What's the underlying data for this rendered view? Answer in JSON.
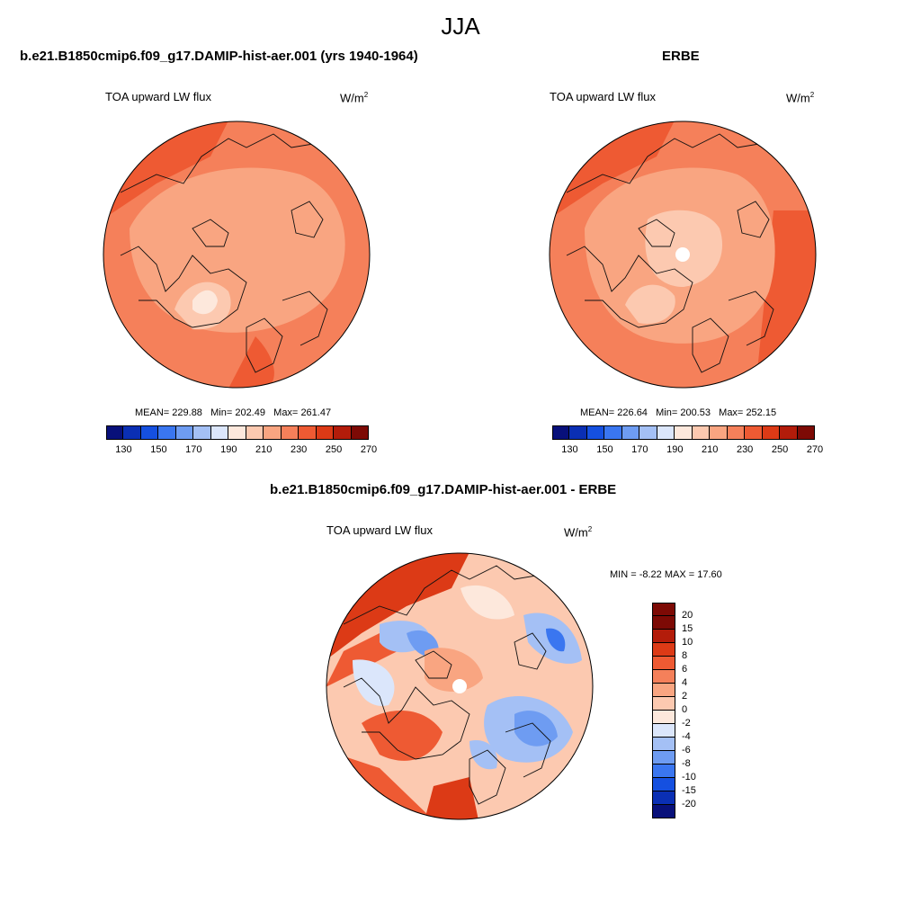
{
  "figure": {
    "season": "JJA",
    "left_panel_title": "b.e21.B1850cmip6.f09_g17.DAMIP-hist-aer.001 (yrs 1940-1964)",
    "right_panel_title": "ERBE",
    "diff_panel_title": "b.e21.B1850cmip6.f09_g17.DAMIP-hist-aer.001 - ERBE"
  },
  "panels": {
    "model": {
      "field": "TOA upward LW flux",
      "units_base": "W/m",
      "units_exp": "2",
      "mean_label": "MEAN=",
      "mean": "229.88",
      "min_label": "Min=",
      "min": "202.49",
      "max_label": "Max=",
      "max": "261.47"
    },
    "obs": {
      "field": "TOA upward LW flux",
      "units_base": "W/m",
      "units_exp": "2",
      "mean_label": "MEAN=",
      "mean": "226.64",
      "min_label": "Min=",
      "min": "200.53",
      "max_label": "Max=",
      "max": "252.15"
    },
    "diff": {
      "field": "TOA upward LW flux",
      "units_base": "W/m",
      "units_exp": "2",
      "min_label": "MIN =",
      "min": "-8.22",
      "max_label": "MAX =",
      "max": "17.60"
    }
  },
  "colorbar_top": {
    "colors": [
      "#08107a",
      "#0a2fb4",
      "#1550e0",
      "#3a76f0",
      "#6e9cf2",
      "#a4c0f5",
      "#dbe6fb",
      "#fde8dc",
      "#fcc9b0",
      "#f9a581",
      "#f5805a",
      "#ee5a33",
      "#dc3a16",
      "#b31c0a",
      "#7d0a05"
    ],
    "labels": [
      "130",
      "150",
      "170",
      "190",
      "210",
      "230",
      "250",
      "270"
    ]
  },
  "colorbar_diff": {
    "colors": [
      "#7d0a05",
      "#b31c0a",
      "#dc3a16",
      "#ee5a33",
      "#f5805a",
      "#f9a581",
      "#fcc9b0",
      "#fde8dc",
      "#dbe6fb",
      "#a4c0f5",
      "#6e9cf2",
      "#3a76f0",
      "#1550e0",
      "#0a2fb4",
      "#08107a"
    ],
    "labels": [
      "20",
      "15",
      "10",
      "8",
      "6",
      "4",
      "2",
      "0",
      "-2",
      "-4",
      "-6",
      "-8",
      "-10",
      "-15",
      "-20"
    ]
  }
}
